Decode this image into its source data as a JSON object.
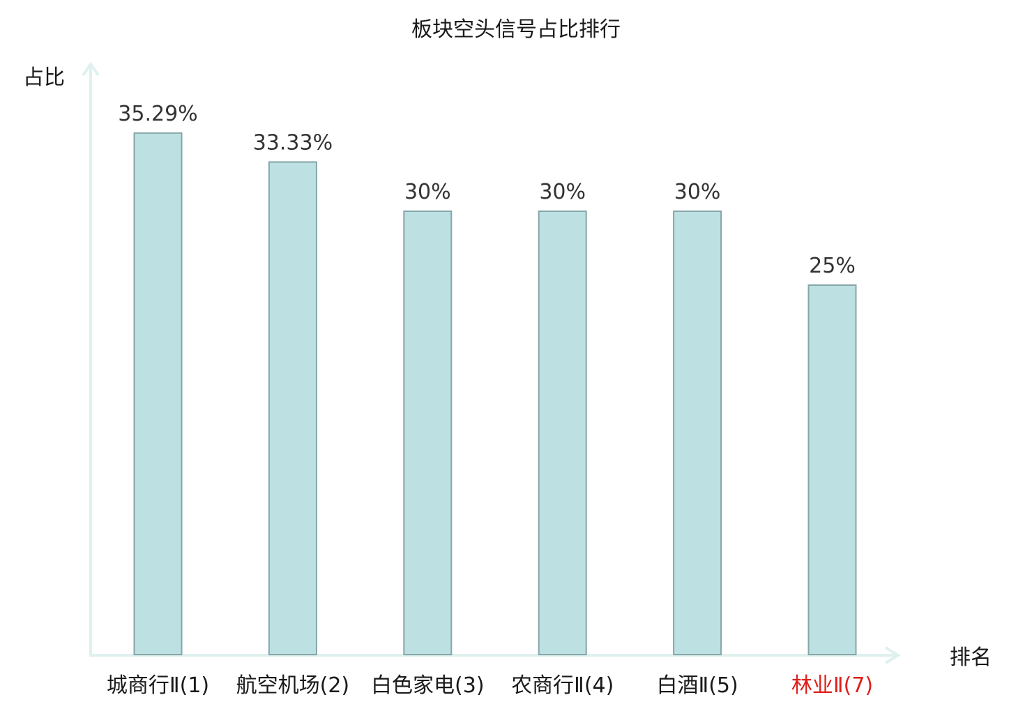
{
  "chart_data": {
    "type": "bar",
    "title": "板块空头信号占比排行",
    "ylabel": "占比",
    "xlabel": "排名",
    "ylim": [
      0,
      40
    ],
    "grid": false,
    "categories": [
      "城商行Ⅱ(1)",
      "航空机场(2)",
      "白色家电(3)",
      "农商行Ⅱ(4)",
      "白酒Ⅱ(5)",
      "林业Ⅱ(7)"
    ],
    "values": [
      35.29,
      33.33,
      30,
      30,
      30,
      25
    ],
    "value_labels": [
      "35.29%",
      "33.33%",
      "30%",
      "30%",
      "30%",
      "25%"
    ],
    "highlight_categories": [
      "林业Ⅱ(7)"
    ]
  },
  "colors": {
    "bar_fill": "#bde0e3",
    "bar_stroke": "#86a6a8",
    "axis": "#dff1ef",
    "category_text": "#1a1a1a",
    "highlight_text": "#e0201b"
  }
}
